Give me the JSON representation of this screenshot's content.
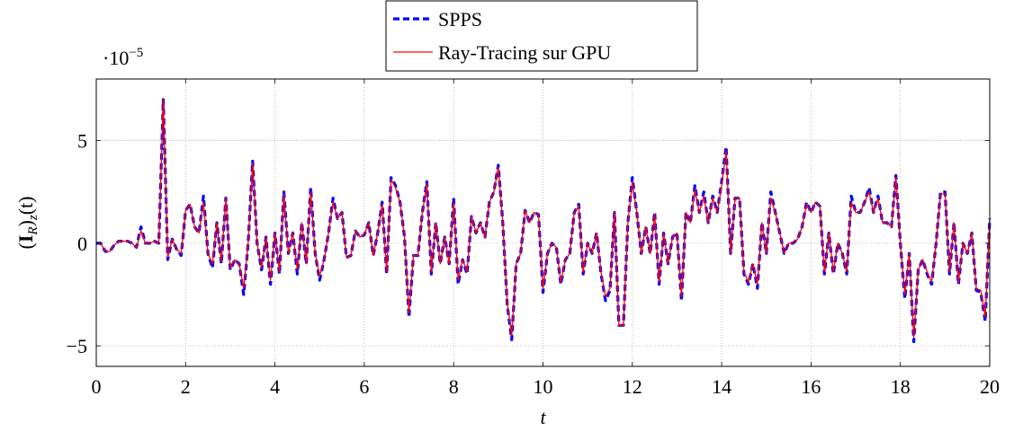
{
  "chart_data": {
    "type": "line",
    "xlabel": "t",
    "ylabel": [
      "(",
      "I",
      "R",
      ")",
      "z",
      "(t)"
    ],
    "y_multiplier": {
      "base": "·10",
      "exponent": "−5"
    },
    "xlim": [
      0,
      20
    ],
    "ylim": [
      -6,
      8
    ],
    "xticks": [
      0,
      2,
      4,
      6,
      8,
      10,
      12,
      14,
      16,
      18,
      20
    ],
    "yticks": [
      {
        "value": -5,
        "label": "−5"
      },
      0,
      5
    ],
    "grid": true,
    "legend": "top",
    "x": [
      0,
      0.1,
      0.2,
      0.3,
      0.4,
      0.5,
      0.6,
      0.7,
      0.8,
      0.9,
      1,
      1.1,
      1.2,
      1.3,
      1.4,
      1.5,
      1.6,
      1.7,
      1.8,
      1.9,
      2,
      2.1,
      2.2,
      2.3,
      2.4,
      2.5,
      2.6,
      2.7,
      2.8,
      2.9,
      3,
      3.1,
      3.2,
      3.3,
      3.4,
      3.5,
      3.6,
      3.7,
      3.8,
      3.9,
      4,
      4.1,
      4.2,
      4.3,
      4.4,
      4.5,
      4.6,
      4.7,
      4.8,
      4.9,
      5,
      5.1,
      5.2,
      5.3,
      5.4,
      5.5,
      5.6,
      5.7,
      5.8,
      5.9,
      6,
      6.1,
      6.2,
      6.3,
      6.4,
      6.5,
      6.6,
      6.7,
      6.8,
      6.9,
      7,
      7.1,
      7.2,
      7.3,
      7.4,
      7.5,
      7.6,
      7.7,
      7.8,
      7.9,
      8,
      8.1,
      8.2,
      8.3,
      8.4,
      8.5,
      8.6,
      8.7,
      8.8,
      8.9,
      9,
      9.1,
      9.2,
      9.3,
      9.4,
      9.5,
      9.6,
      9.7,
      9.8,
      9.9,
      10,
      10.1,
      10.2,
      10.3,
      10.4,
      10.5,
      10.6,
      10.7,
      10.8,
      10.9,
      11,
      11.1,
      11.2,
      11.3,
      11.4,
      11.5,
      11.6,
      11.7,
      11.8,
      11.9,
      12,
      12.1,
      12.2,
      12.3,
      12.4,
      12.5,
      12.6,
      12.7,
      12.8,
      12.9,
      13,
      13.1,
      13.2,
      13.3,
      13.4,
      13.5,
      13.6,
      13.7,
      13.8,
      13.9,
      14,
      14.1,
      14.2,
      14.3,
      14.4,
      14.5,
      14.6,
      14.7,
      14.8,
      14.9,
      15,
      15.1,
      15.2,
      15.3,
      15.4,
      15.5,
      15.6,
      15.7,
      15.8,
      15.9,
      16,
      16.1,
      16.2,
      16.3,
      16.4,
      16.5,
      16.6,
      16.7,
      16.8,
      16.9,
      17,
      17.1,
      17.2,
      17.3,
      17.4,
      17.5,
      17.6,
      17.7,
      17.8,
      17.9,
      18,
      18.1,
      18.2,
      18.3,
      18.4,
      18.5,
      18.6,
      18.7,
      18.8,
      18.9,
      19,
      19.1,
      19.2,
      19.3,
      19.4,
      19.5,
      19.6,
      19.7,
      19.8,
      19.9,
      20
    ],
    "series": [
      {
        "name": "SPPS",
        "color": "#0000ff",
        "values": [
          0,
          0,
          -0.4,
          -0.4,
          -0.1,
          0.1,
          0.1,
          0.1,
          0,
          -0.2,
          0.8,
          0,
          0,
          0.1,
          0,
          7,
          -0.8,
          0.2,
          -0.3,
          -0.6,
          1.6,
          1.9,
          0.8,
          0.5,
          2.3,
          -0.5,
          -1.2,
          1,
          -1,
          2.2,
          -1.3,
          -0.8,
          -1,
          -2.5,
          0,
          4,
          0,
          -1.3,
          0.3,
          -2,
          0.5,
          -1.5,
          2.5,
          -0.5,
          0.5,
          -1.5,
          1,
          -1,
          2.7,
          -0.5,
          -1.8,
          -0.8,
          0.5,
          2.2,
          1.2,
          1.5,
          -0.7,
          -0.6,
          0.6,
          0.3,
          0.4,
          1,
          -0.6,
          0.5,
          2,
          -1.5,
          3.2,
          2.8,
          2,
          0.3,
          -3.6,
          -0.6,
          -0.6,
          1.5,
          3,
          -1.5,
          1,
          -1,
          0.3,
          -1,
          2.2,
          -2,
          -0.8,
          -1.5,
          1.3,
          0.5,
          1,
          0.3,
          2,
          2.5,
          3.8,
          1,
          -3,
          -4.7,
          -1,
          -0.5,
          1.6,
          1,
          1.5,
          1.4,
          -2.4,
          -0.5,
          0,
          -0.2,
          -2,
          -0.8,
          -0.5,
          1.5,
          1.9,
          -1.5,
          0,
          -0.5,
          0.5,
          -1.5,
          -2.8,
          -2.3,
          1.5,
          -4,
          -4,
          1,
          3.2,
          1.5,
          -0.5,
          0.8,
          -0.5,
          1.5,
          -2,
          0.5,
          -1,
          0.3,
          0.5,
          -2.8,
          1.5,
          1,
          2.8,
          1.5,
          2.5,
          1,
          2.3,
          1.5,
          3,
          4.7,
          -0.5,
          2.2,
          2.2,
          -1.5,
          -2,
          -1,
          -2.2,
          1,
          -0.5,
          2.5,
          1.5,
          0.5,
          -0.5,
          0,
          0,
          0.2,
          0.8,
          2,
          1.5,
          2,
          1.8,
          -1.5,
          0.5,
          -1.5,
          0,
          -0.5,
          -1.5,
          2.3,
          1.5,
          1.5,
          2,
          2.7,
          1.5,
          2.3,
          1,
          1,
          0.8,
          3.3,
          0,
          -2.7,
          -0.5,
          -4.8,
          -1.3,
          -0.8,
          -1.5,
          -2,
          0,
          2.5,
          2.5,
          -1.5,
          1,
          -2,
          0,
          -0.5,
          0.5,
          -2.3,
          -2.4,
          -3.8,
          1.2
        ]
      },
      {
        "name": "Ray-Tracing sur GPU",
        "color": "#ff0000",
        "values": [
          0,
          0,
          -0.4,
          -0.4,
          -0.1,
          0.1,
          0.1,
          0.1,
          0,
          -0.2,
          0.6,
          0,
          0,
          0.1,
          0,
          7,
          -0.7,
          0.2,
          -0.3,
          -0.5,
          1.6,
          1.9,
          0.8,
          0.5,
          2,
          -0.5,
          -1,
          1,
          -0.9,
          2.2,
          -1.2,
          -0.8,
          -1,
          -2.2,
          0,
          3.9,
          0,
          -1.2,
          0.3,
          -1.8,
          0.5,
          -1.4,
          2.4,
          -0.5,
          0.5,
          -1.3,
          1,
          -1,
          2.5,
          -0.5,
          -1.6,
          -0.8,
          0.5,
          2,
          1.2,
          1.5,
          -0.7,
          -0.6,
          0.6,
          0.3,
          0.4,
          1,
          -0.6,
          0.5,
          1.9,
          -1.4,
          3.1,
          2.7,
          2,
          0.3,
          -3.4,
          -0.6,
          -0.6,
          1.5,
          2.9,
          -1.4,
          1,
          -1,
          0.3,
          -1,
          2,
          -1.8,
          -0.8,
          -1.4,
          1.3,
          0.5,
          1,
          0.3,
          2,
          2.5,
          3.7,
          1,
          -2.9,
          -4.5,
          -1,
          -0.5,
          1.6,
          1,
          1.5,
          1.4,
          -2.2,
          -0.5,
          0,
          -0.2,
          -1.9,
          -0.8,
          -0.5,
          1.5,
          1.8,
          -1.4,
          0,
          -0.5,
          0.5,
          -1.4,
          -2.6,
          -2.2,
          1.5,
          -4,
          -4,
          1,
          3,
          1.5,
          -0.5,
          0.8,
          -0.5,
          1.4,
          -1.9,
          0.5,
          -1,
          0.3,
          0.5,
          -2.6,
          1.5,
          1,
          2.6,
          1.5,
          2.3,
          1,
          2.2,
          1.5,
          2.8,
          4.5,
          -0.5,
          2.2,
          2.2,
          -1.4,
          -1.9,
          -1,
          -2,
          1,
          -0.5,
          2.2,
          1.5,
          0.5,
          -0.5,
          0,
          0,
          0.2,
          0.8,
          1.9,
          1.5,
          2,
          1.8,
          -1.4,
          0.5,
          -1.4,
          0,
          -0.5,
          -1.4,
          2,
          1.5,
          1.5,
          2,
          2.5,
          1.5,
          2.2,
          1,
          1,
          0.8,
          3.2,
          0,
          -2.5,
          -0.5,
          -4.6,
          -1.3,
          -0.8,
          -1.4,
          -1.9,
          0,
          2.4,
          2.4,
          -1.4,
          1,
          -1.9,
          0,
          -0.5,
          0.5,
          -2.2,
          -2.3,
          -3.6,
          1.2
        ]
      }
    ]
  }
}
